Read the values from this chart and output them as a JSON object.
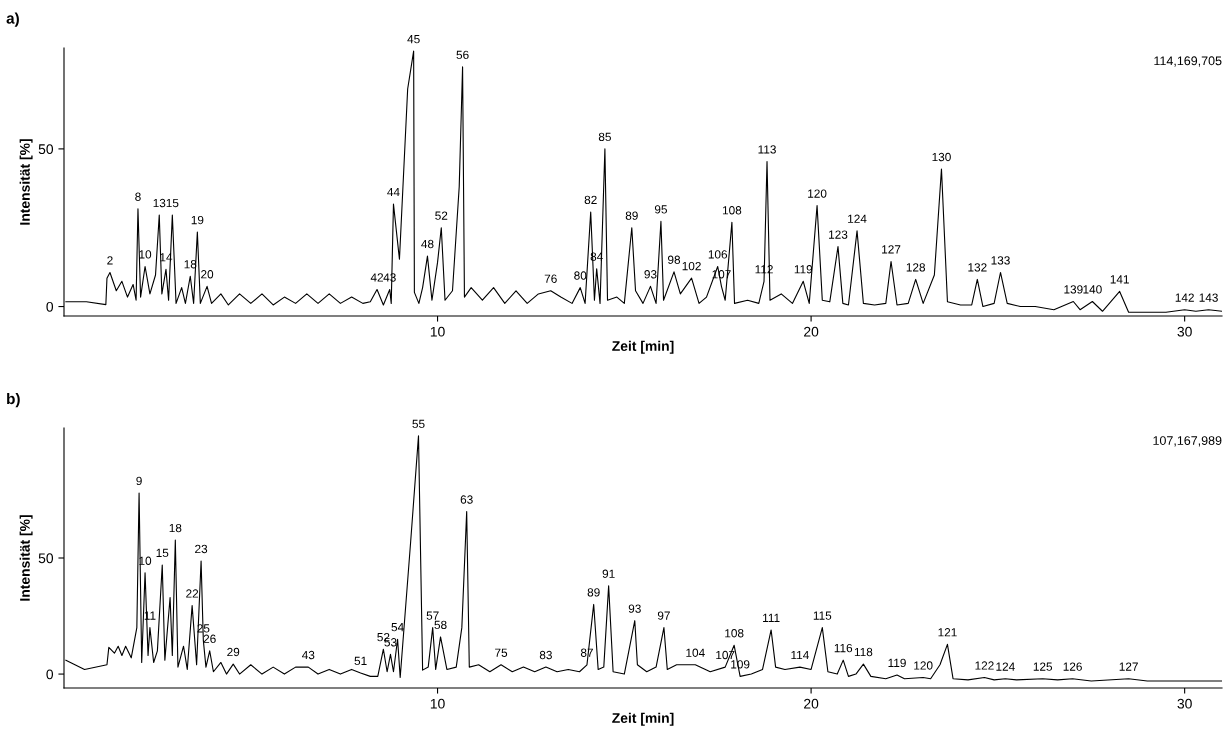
{
  "chart_data": [
    {
      "type": "line",
      "title": "a)",
      "xlabel": "Zeit [min]",
      "ylabel": "Intensität [%]",
      "xlim": [
        0,
        31
      ],
      "ylim": [
        -3,
        82
      ],
      "xticks": [
        10,
        20,
        30
      ],
      "yticks": [
        0,
        50
      ],
      "grid": false,
      "legend": false,
      "series": [
        {
          "color": "#000000",
          "x": [
            0.05,
            0.6,
            1.12,
            1.15,
            1.23,
            1.4,
            1.55,
            1.7,
            1.85,
            1.93,
            1.98,
            2.05,
            2.17,
            2.3,
            2.45,
            2.55,
            2.62,
            2.73,
            2.8,
            2.9,
            3.0,
            3.15,
            3.25,
            3.38,
            3.47,
            3.57,
            3.65,
            3.83,
            3.95,
            4.2,
            4.4,
            4.7,
            5.0,
            5.3,
            5.6,
            5.9,
            6.2,
            6.5,
            6.8,
            7.1,
            7.4,
            7.7,
            8.0,
            8.2,
            8.38,
            8.55,
            8.72,
            8.76,
            8.82,
            8.98,
            9.2,
            9.36,
            9.38,
            9.5,
            9.6,
            9.73,
            9.85,
            10.0,
            10.1,
            10.2,
            10.4,
            10.58,
            10.67,
            10.72,
            10.9,
            11.2,
            11.5,
            11.8,
            12.1,
            12.4,
            12.7,
            13.03,
            13.3,
            13.6,
            13.82,
            13.95,
            14.1,
            14.2,
            14.26,
            14.35,
            14.48,
            14.55,
            14.8,
            15.0,
            15.2,
            15.3,
            15.5,
            15.7,
            15.85,
            15.98,
            16.05,
            16.33,
            16.5,
            16.8,
            17.0,
            17.2,
            17.5,
            17.6,
            17.7,
            17.88,
            17.95,
            18.3,
            18.6,
            18.74,
            18.82,
            18.9,
            19.2,
            19.5,
            19.79,
            19.95,
            20.16,
            20.3,
            20.5,
            20.72,
            20.85,
            21.0,
            21.23,
            21.4,
            21.7,
            22.0,
            22.14,
            22.3,
            22.6,
            22.8,
            23.0,
            23.3,
            23.49,
            23.65,
            24.0,
            24.3,
            24.45,
            24.6,
            24.9,
            25.07,
            25.25,
            25.6,
            26.0,
            26.5,
            27.02,
            27.2,
            27.53,
            27.8,
            28.26,
            28.5,
            29.5,
            30.0,
            30.3,
            30.64,
            31.0
          ],
          "values": [
            1.5,
            1.5,
            0.6,
            9,
            10.8,
            5,
            8,
            3,
            7,
            2,
            31,
            3,
            12.7,
            4,
            10,
            29,
            4,
            11.8,
            2,
            29,
            1,
            6,
            1,
            9.6,
            1,
            23.6,
            1,
            6.4,
            1,
            4,
            0.5,
            4,
            1,
            4,
            0.5,
            3,
            1,
            4,
            1,
            4,
            1,
            3,
            1,
            1.5,
            5.4,
            0.5,
            5.4,
            1,
            32.5,
            15,
            69,
            81,
            4.5,
            1,
            6,
            16,
            2,
            14,
            25,
            2,
            5,
            38,
            76,
            3,
            6,
            2,
            6,
            1,
            5,
            1,
            4,
            5,
            3,
            1,
            6,
            1,
            30,
            2,
            12,
            1,
            50,
            2,
            3,
            1,
            25,
            5,
            1,
            6.4,
            1,
            27,
            2,
            11,
            4,
            9,
            1,
            3,
            12.7,
            6.4,
            2,
            26.7,
            1,
            2,
            1,
            8,
            46,
            2,
            4,
            1,
            8,
            1,
            32,
            2,
            1.5,
            19,
            1,
            0.5,
            24,
            1,
            0.5,
            1,
            14.3,
            0.5,
            1,
            8.6,
            1,
            10,
            43.6,
            1.5,
            0.5,
            0.5,
            8.6,
            0,
            1,
            10.8,
            1,
            0,
            0,
            -1,
            1.6,
            -1,
            1.6,
            -1.5,
            4.8,
            -1.8,
            -1.8,
            -1,
            -1.5,
            -1,
            -1.5
          ]
        }
      ],
      "annotations": [
        "114,169,705",
        {
          "text": "2",
          "x": 1.23,
          "y": 10.8
        },
        {
          "text": "8",
          "x": 1.98,
          "y": 31
        },
        {
          "text": "10",
          "x": 2.17,
          "y": 12.7
        },
        {
          "text": "13",
          "x": 2.55,
          "y": 29
        },
        {
          "text": "14",
          "x": 2.73,
          "y": 11.8
        },
        {
          "text": "15",
          "x": 2.9,
          "y": 29
        },
        {
          "text": "18",
          "x": 3.38,
          "y": 9.6
        },
        {
          "text": "19",
          "x": 3.57,
          "y": 23.6
        },
        {
          "text": "20",
          "x": 3.83,
          "y": 6.4
        },
        {
          "text": "42",
          "x": 8.38,
          "y": 5.4
        },
        {
          "text": "43",
          "x": 8.72,
          "y": 5.4
        },
        {
          "text": "44",
          "x": 8.82,
          "y": 32.5
        },
        {
          "text": "45",
          "x": 9.36,
          "y": 81
        },
        {
          "text": "48",
          "x": 9.73,
          "y": 16
        },
        {
          "text": "52",
          "x": 10.1,
          "y": 25
        },
        {
          "text": "56",
          "x": 10.67,
          "y": 76
        },
        {
          "text": "76",
          "x": 13.03,
          "y": 5
        },
        {
          "text": "80",
          "x": 13.82,
          "y": 6
        },
        {
          "text": "82",
          "x": 14.1,
          "y": 30
        },
        {
          "text": "84",
          "x": 14.26,
          "y": 12
        },
        {
          "text": "85",
          "x": 14.48,
          "y": 50
        },
        {
          "text": "89",
          "x": 15.2,
          "y": 25
        },
        {
          "text": "93",
          "x": 15.7,
          "y": 6.4
        },
        {
          "text": "95",
          "x": 15.98,
          "y": 27
        },
        {
          "text": "98",
          "x": 16.33,
          "y": 11
        },
        {
          "text": "102",
          "x": 16.8,
          "y": 9
        },
        {
          "text": "106",
          "x": 17.5,
          "y": 12.7
        },
        {
          "text": "107",
          "x": 17.6,
          "y": 6.4
        },
        {
          "text": "108",
          "x": 17.88,
          "y": 26.7
        },
        {
          "text": "112",
          "x": 18.74,
          "y": 8
        },
        {
          "text": "113",
          "x": 18.82,
          "y": 46
        },
        {
          "text": "119",
          "x": 19.79,
          "y": 8
        },
        {
          "text": "120",
          "x": 20.16,
          "y": 32
        },
        {
          "text": "123",
          "x": 20.72,
          "y": 19
        },
        {
          "text": "124",
          "x": 21.23,
          "y": 24
        },
        {
          "text": "127",
          "x": 22.14,
          "y": 14.3
        },
        {
          "text": "128",
          "x": 22.8,
          "y": 8.6
        },
        {
          "text": "130",
          "x": 23.49,
          "y": 43.6
        },
        {
          "text": "132",
          "x": 24.45,
          "y": 8.6
        },
        {
          "text": "133",
          "x": 25.07,
          "y": 10.8
        },
        {
          "text": "139",
          "x": 27.02,
          "y": 1.6
        },
        {
          "text": "140",
          "x": 27.53,
          "y": 1.6
        },
        {
          "text": "141",
          "x": 28.26,
          "y": 4.8
        },
        {
          "text": "142",
          "x": 30.0,
          "y": -1
        },
        {
          "text": "143",
          "x": 30.64,
          "y": -1
        }
      ]
    },
    {
      "type": "line",
      "title": "b)",
      "xlabel": "Zeit [min]",
      "ylabel": "Intensität [%]",
      "xlim": [
        0,
        31
      ],
      "ylim": [
        -6,
        106
      ],
      "xticks": [
        10,
        20,
        30
      ],
      "yticks": [
        0,
        50
      ],
      "grid": false,
      "legend": false,
      "series": [
        {
          "color": "#000000",
          "x": [
            0.05,
            0.55,
            1.15,
            1.2,
            1.35,
            1.45,
            1.55,
            1.65,
            1.8,
            1.95,
            2.01,
            2.08,
            2.17,
            2.25,
            2.3,
            2.4,
            2.5,
            2.63,
            2.7,
            2.84,
            2.9,
            2.98,
            3.05,
            3.2,
            3.3,
            3.43,
            3.55,
            3.67,
            3.73,
            3.8,
            3.9,
            4.0,
            4.2,
            4.35,
            4.53,
            4.7,
            5.0,
            5.3,
            5.6,
            5.9,
            6.2,
            6.54,
            6.8,
            7.1,
            7.4,
            7.7,
            7.94,
            8.2,
            8.4,
            8.55,
            8.65,
            8.74,
            8.82,
            8.93,
            9.0,
            9.28,
            9.49,
            9.6,
            9.75,
            9.87,
            9.95,
            10.08,
            10.25,
            10.5,
            10.65,
            10.78,
            10.85,
            11.1,
            11.4,
            11.7,
            12.0,
            12.3,
            12.6,
            12.9,
            13.2,
            13.5,
            13.8,
            14.0,
            14.18,
            14.3,
            14.45,
            14.58,
            14.7,
            15.0,
            15.28,
            15.35,
            15.6,
            15.85,
            16.06,
            16.15,
            16.4,
            16.9,
            17.3,
            17.7,
            17.94,
            18.1,
            18.4,
            18.7,
            18.93,
            19.05,
            19.3,
            19.7,
            20.0,
            20.3,
            20.45,
            20.7,
            20.86,
            21.0,
            21.2,
            21.4,
            21.6,
            22.0,
            22.3,
            22.5,
            23.0,
            23.2,
            23.45,
            23.65,
            23.8,
            24.2,
            24.64,
            24.9,
            25.2,
            25.5,
            26.2,
            26.6,
            27.0,
            27.5,
            28.5,
            29.0,
            31.0
          ],
          "values": [
            6,
            2,
            4,
            11.5,
            9,
            12,
            8,
            12,
            7,
            20,
            78,
            5,
            43.6,
            8,
            20,
            5,
            10,
            47,
            6,
            33,
            8,
            57.7,
            3,
            12,
            2,
            29.5,
            4,
            48.7,
            14.5,
            3,
            10,
            1,
            5,
            0,
            4.3,
            0,
            4,
            0,
            3,
            0,
            3,
            3,
            0,
            2,
            0,
            2,
            0.5,
            -1,
            -1,
            10.7,
            1,
            8.5,
            1,
            15,
            -1.5,
            57,
            102.6,
            1.7,
            3,
            20,
            2,
            16,
            2,
            3,
            20,
            70,
            3,
            4,
            1,
            4,
            1,
            3,
            1,
            3,
            1,
            2,
            1,
            4,
            30,
            2,
            3,
            38,
            1,
            0,
            23,
            4,
            1,
            3,
            20,
            2,
            4,
            4,
            1,
            3,
            12.4,
            -1,
            0,
            2,
            19,
            3,
            2,
            3,
            2,
            20,
            1,
            0,
            6,
            -1,
            0,
            4.3,
            -1,
            -2,
            -0.4,
            -2,
            -1.5,
            -2,
            4,
            12.8,
            -2,
            -2.5,
            -1.5,
            -2.5,
            -2,
            -2.5,
            -2,
            -2.5,
            -2,
            -3,
            -2,
            -3,
            -3
          ]
        }
      ],
      "annotations": [
        "107,167,989",
        {
          "text": "9",
          "x": 2.01,
          "y": 78
        },
        {
          "text": "10",
          "x": 2.17,
          "y": 43.6
        },
        {
          "text": "11",
          "x": 2.3,
          "y": 20
        },
        {
          "text": "15",
          "x": 2.63,
          "y": 47
        },
        {
          "text": "18",
          "x": 2.98,
          "y": 57.7
        },
        {
          "text": "22",
          "x": 3.43,
          "y": 29.5
        },
        {
          "text": "23",
          "x": 3.67,
          "y": 48.7
        },
        {
          "text": "25",
          "x": 3.73,
          "y": 14.5
        },
        {
          "text": "26",
          "x": 3.9,
          "y": 10
        },
        {
          "text": "29",
          "x": 4.53,
          "y": 4.3
        },
        {
          "text": "43",
          "x": 6.54,
          "y": 3
        },
        {
          "text": "51",
          "x": 7.94,
          "y": 0.5
        },
        {
          "text": "52",
          "x": 8.55,
          "y": 10.7
        },
        {
          "text": "53",
          "x": 8.74,
          "y": 8.5
        },
        {
          "text": "54",
          "x": 8.93,
          "y": 15
        },
        {
          "text": "55",
          "x": 9.49,
          "y": 102.6
        },
        {
          "text": "57",
          "x": 9.87,
          "y": 20
        },
        {
          "text": "58",
          "x": 10.08,
          "y": 16
        },
        {
          "text": "63",
          "x": 10.78,
          "y": 70
        },
        {
          "text": "75",
          "x": 11.7,
          "y": 4
        },
        {
          "text": "83",
          "x": 12.9,
          "y": 3
        },
        {
          "text": "87",
          "x": 14.0,
          "y": 4
        },
        {
          "text": "89",
          "x": 14.18,
          "y": 30
        },
        {
          "text": "91",
          "x": 14.58,
          "y": 38
        },
        {
          "text": "93",
          "x": 15.28,
          "y": 23
        },
        {
          "text": "97",
          "x": 16.06,
          "y": 20
        },
        {
          "text": "104",
          "x": 16.9,
          "y": 4
        },
        {
          "text": "107",
          "x": 17.7,
          "y": 3
        },
        {
          "text": "108",
          "x": 17.94,
          "y": 12.4
        },
        {
          "text": "109",
          "x": 18.1,
          "y": -1
        },
        {
          "text": "111",
          "x": 18.93,
          "y": 19
        },
        {
          "text": "114",
          "x": 19.7,
          "y": 3
        },
        {
          "text": "115",
          "x": 20.3,
          "y": 20
        },
        {
          "text": "116",
          "x": 20.86,
          "y": 6
        },
        {
          "text": "118",
          "x": 21.4,
          "y": 4.3
        },
        {
          "text": "119",
          "x": 22.3,
          "y": -0.4
        },
        {
          "text": "120",
          "x": 23.0,
          "y": -1.5
        },
        {
          "text": "121",
          "x": 23.65,
          "y": 12.8
        },
        {
          "text": "122",
          "x": 24.64,
          "y": -1.5
        },
        {
          "text": "124",
          "x": 25.2,
          "y": -2
        },
        {
          "text": "125",
          "x": 26.2,
          "y": -2
        },
        {
          "text": "126",
          "x": 27.0,
          "y": -2
        },
        {
          "text": "127",
          "x": 28.5,
          "y": -2
        }
      ]
    }
  ]
}
